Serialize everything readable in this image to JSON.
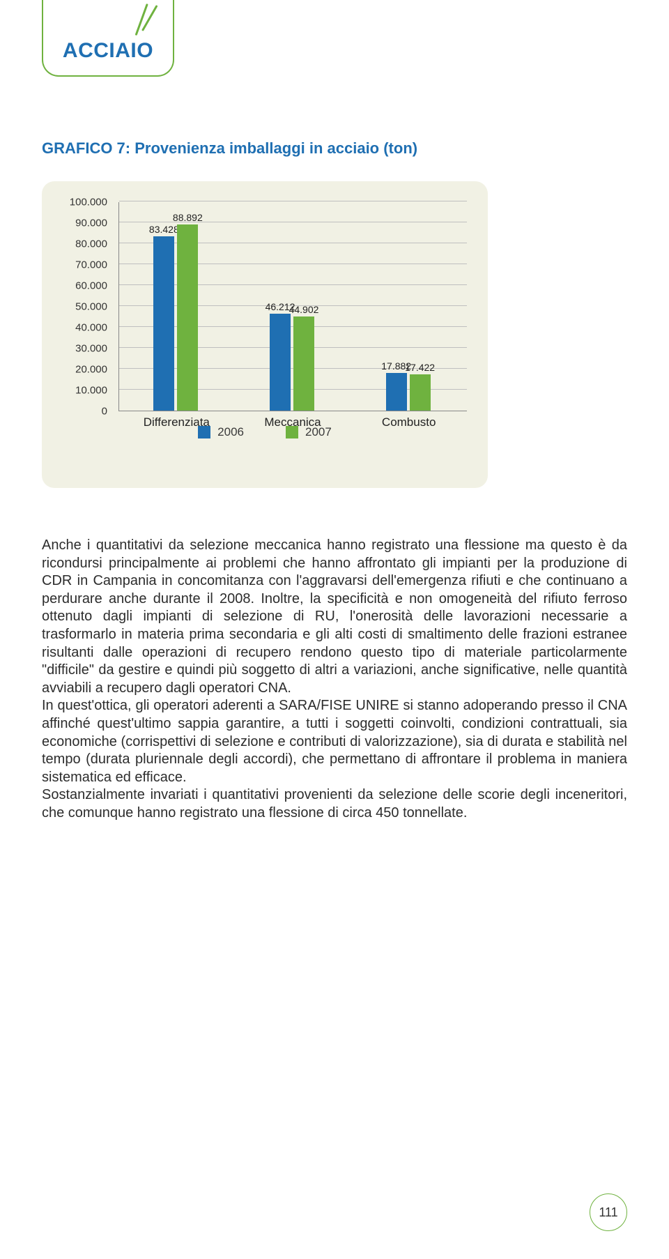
{
  "tab": {
    "label": "ACCIAIO",
    "border_color": "#6fb23f",
    "text_color": "#1f6fb2"
  },
  "chart": {
    "title": "GRAFICO 7: Provenienza imballaggi in acciaio (ton)",
    "title_color": "#1f6fb2",
    "background_color": "#f1f1e4",
    "grid_color": "#bfbfbf",
    "series_colors": {
      "s2006": "#1f6fb2",
      "s2007": "#6fb23f"
    },
    "ymax": 100000,
    "y_ticks": [
      {
        "v": 100000,
        "label": "100.000"
      },
      {
        "v": 90000,
        "label": "90.000"
      },
      {
        "v": 80000,
        "label": "80.000"
      },
      {
        "v": 70000,
        "label": "70.000"
      },
      {
        "v": 60000,
        "label": "60.000"
      },
      {
        "v": 50000,
        "label": "50.000"
      },
      {
        "v": 40000,
        "label": "40.000"
      },
      {
        "v": 30000,
        "label": "30.000"
      },
      {
        "v": 20000,
        "label": "20.000"
      },
      {
        "v": 10000,
        "label": "10.000"
      },
      {
        "v": 0,
        "label": "0"
      }
    ],
    "categories": [
      {
        "name": "Differenziata",
        "v2006": 83428,
        "l2006": "83.428",
        "v2007": 88892,
        "l2007": "88.892"
      },
      {
        "name": "Meccanica",
        "v2006": 46212,
        "l2006": "46.212",
        "v2007": 44902,
        "l2007": "44.902"
      },
      {
        "name": "Combusto",
        "v2006": 17882,
        "l2006": "17.882",
        "v2007": 17422,
        "l2007": "17.422"
      }
    ],
    "legend": [
      {
        "label": "2006",
        "color": "#1f6fb2"
      },
      {
        "label": "2007",
        "color": "#6fb23f"
      }
    ]
  },
  "paragraphs": [
    "Anche i quantitativi da selezione meccanica hanno registrato una flessione ma questo è da ricondursi principalmente ai problemi che hanno affrontato gli impianti per la produzione di CDR in Campania in concomitanza con l'aggravarsi dell'emergenza rifiuti e che continuano a perdurare anche durante il 2008. Inoltre, la specificità e non omogeneità del rifiuto ferroso ottenuto dagli impianti di selezione di RU, l'onerosità delle lavorazioni necessarie a trasformarlo in materia prima secondaria e gli alti costi di smaltimento delle frazioni estranee risultanti dalle operazioni di recupero rendono questo tipo di materiale particolarmente \"difficile\" da gestire e quindi più soggetto di altri a variazioni, anche significative, nelle quantità avviabili a recupero dagli operatori CNA.",
    "In quest'ottica, gli operatori aderenti a SARA/FISE UNIRE si stanno adoperando presso il CNA affinché quest'ultimo sappia garantire, a tutti i soggetti coinvolti, condizioni contrattuali, sia economiche (corrispettivi di selezione e contributi di valorizzazione), sia di durata e stabilità nel tempo (durata pluriennale degli accordi), che permettano di affrontare il problema in maniera sistematica ed efficace.",
    "Sostanzialmente invariati i quantitativi provenienti da selezione delle scorie degli inceneritori, che comunque hanno registrato una flessione di circa 450 tonnellate."
  ],
  "page_number": "111"
}
